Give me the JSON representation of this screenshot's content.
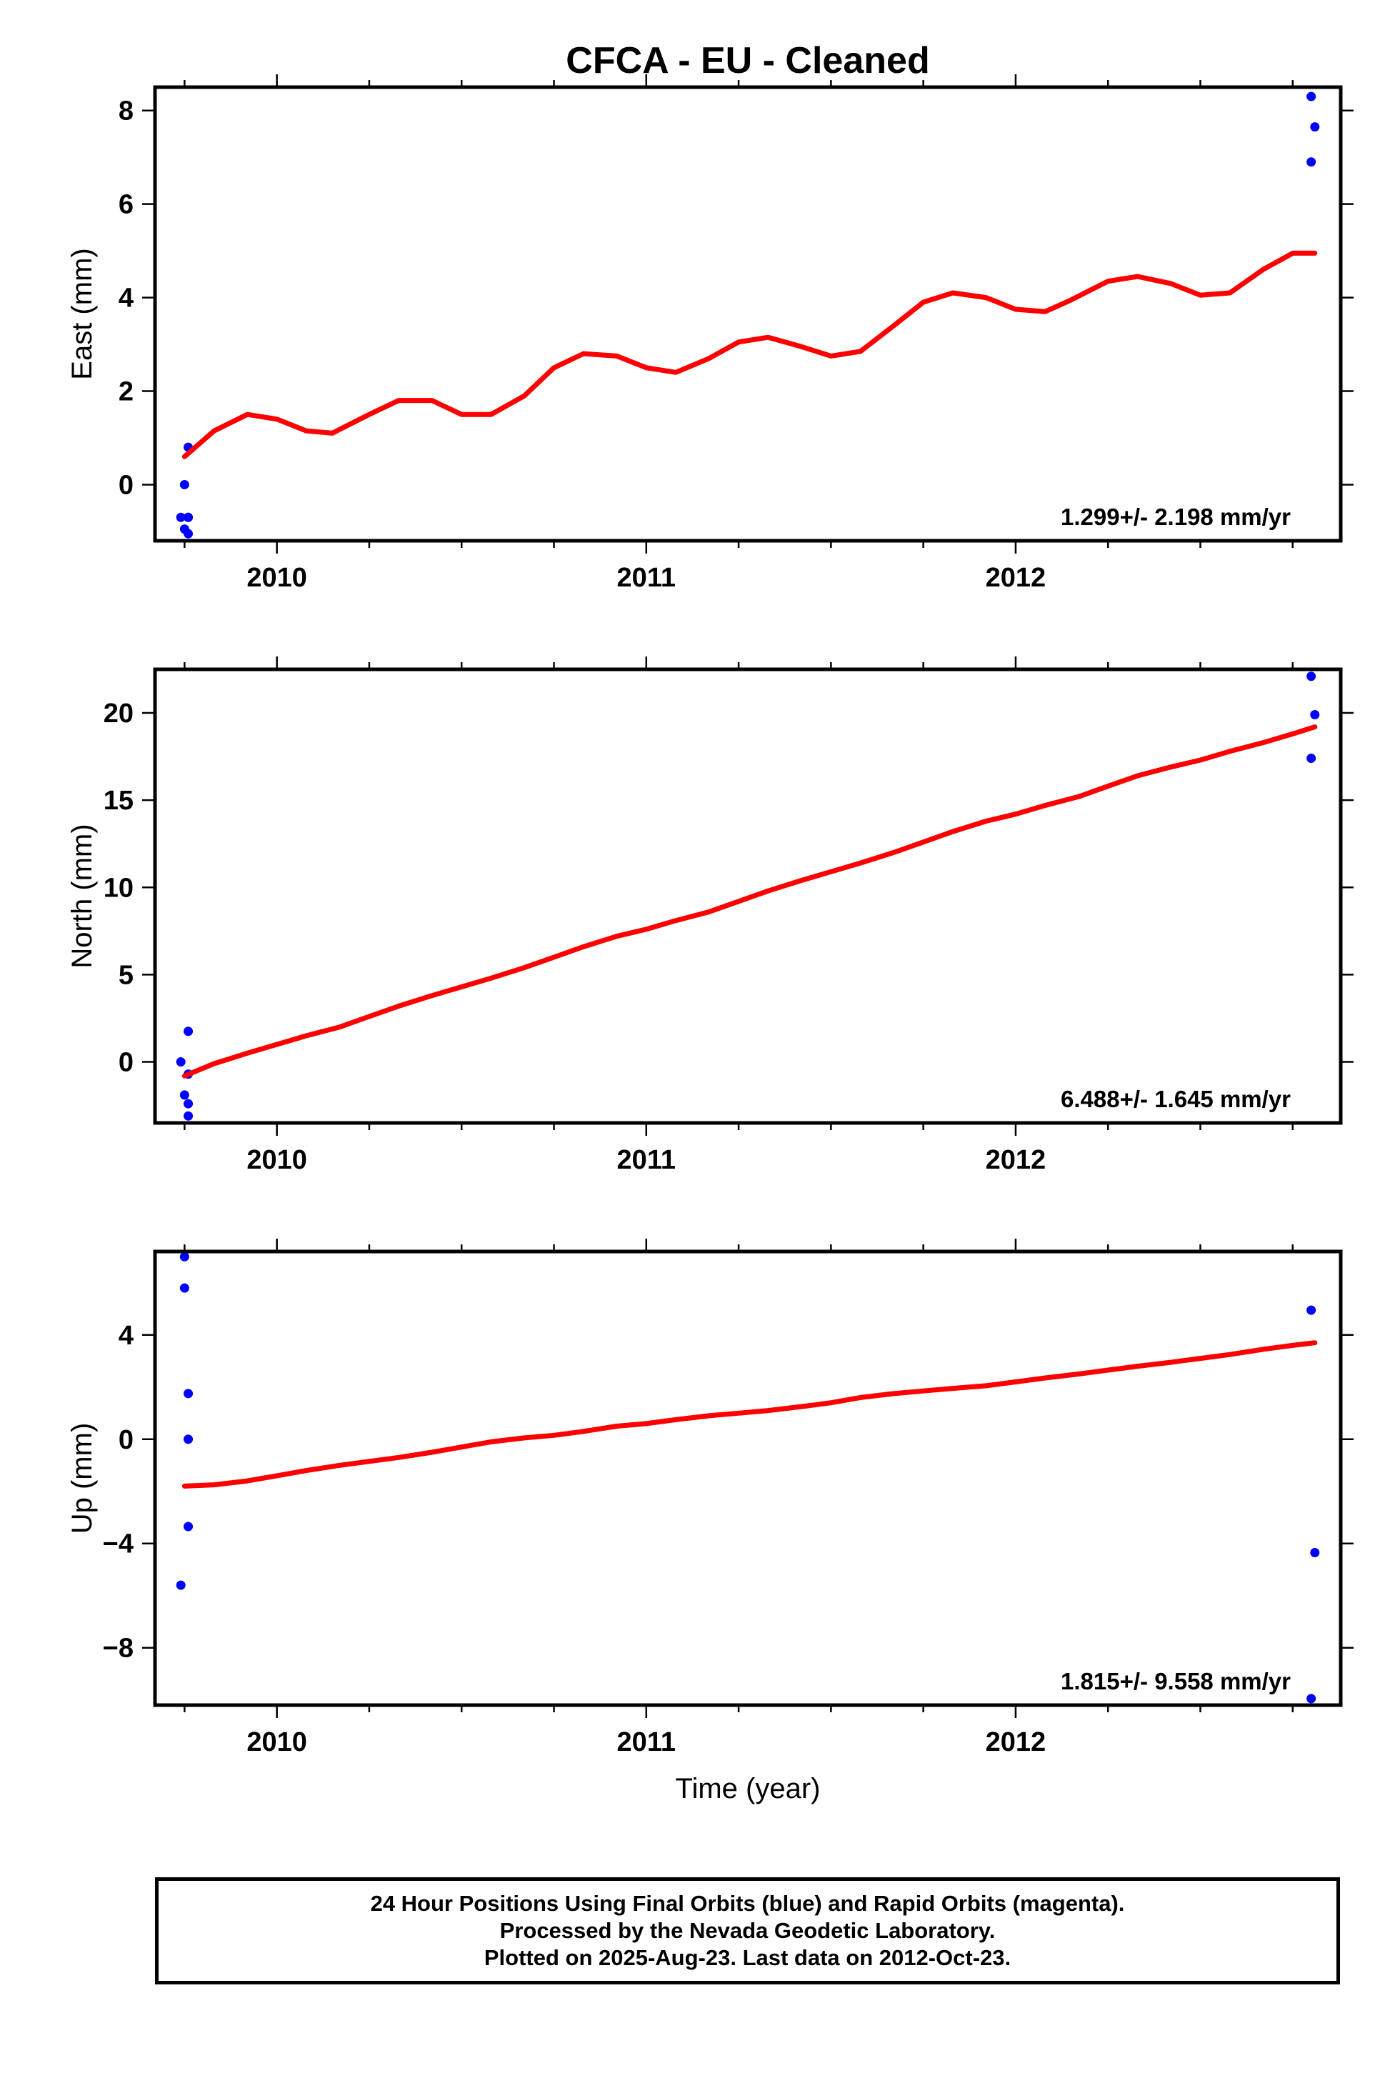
{
  "chart_data": [
    {
      "type": "scatter",
      "title": "CFCA  - EU - Cleaned",
      "ylabel": "East (mm)",
      "xlim": [
        2009.67,
        2012.88
      ],
      "ylim": [
        -1.2,
        8.5
      ],
      "yticks": [
        0,
        2,
        4,
        6,
        8
      ],
      "xticks": [
        2010,
        2011,
        2012
      ],
      "annotation": "1.299+/- 2.198 mm/yr",
      "series": [
        {
          "type": "scatter",
          "color": "#0000ff",
          "x": [
            2009.74,
            2009.75,
            2009.75,
            2009.76,
            2009.76,
            2009.76,
            2009.76,
            2012.8,
            2012.8,
            2012.81
          ],
          "y": [
            -0.7,
            0.0,
            -0.95,
            -1.05,
            -0.7,
            0.8,
            -0.7,
            8.3,
            6.9,
            7.65
          ]
        },
        {
          "type": "line",
          "color": "#ff0000",
          "x": [
            2009.75,
            2009.83,
            2009.92,
            2010.0,
            2010.08,
            2010.15,
            2010.25,
            2010.33,
            2010.42,
            2010.5,
            2010.58,
            2010.67,
            2010.75,
            2010.83,
            2010.92,
            2011.0,
            2011.08,
            2011.17,
            2011.25,
            2011.33,
            2011.42,
            2011.5,
            2011.58,
            2011.67,
            2011.75,
            2011.83,
            2011.92,
            2012.0,
            2012.08,
            2012.15,
            2012.25,
            2012.33,
            2012.42,
            2012.5,
            2012.58,
            2012.67,
            2012.75,
            2012.81
          ],
          "y": [
            0.6,
            1.15,
            1.5,
            1.4,
            1.15,
            1.1,
            1.5,
            1.8,
            1.8,
            1.5,
            1.5,
            1.9,
            2.5,
            2.8,
            2.75,
            2.5,
            2.4,
            2.7,
            3.05,
            3.15,
            2.95,
            2.75,
            2.85,
            3.4,
            3.9,
            4.1,
            4.0,
            3.75,
            3.7,
            3.95,
            4.35,
            4.45,
            4.3,
            4.05,
            4.1,
            4.6,
            4.95,
            4.95
          ]
        }
      ]
    },
    {
      "type": "scatter",
      "ylabel": "North (mm)",
      "xlim": [
        2009.67,
        2012.88
      ],
      "ylim": [
        -3.5,
        22.5
      ],
      "yticks": [
        0,
        5,
        10,
        15,
        20
      ],
      "xticks": [
        2010,
        2011,
        2012
      ],
      "annotation": "6.488+/- 1.645 mm/yr",
      "series": [
        {
          "type": "scatter",
          "color": "#0000ff",
          "x": [
            2009.74,
            2009.75,
            2009.76,
            2009.76,
            2009.76,
            2009.76,
            2012.8,
            2012.8,
            2012.81
          ],
          "y": [
            0.0,
            -1.9,
            1.75,
            -2.4,
            -3.1,
            -0.7,
            22.1,
            17.4,
            19.9
          ]
        },
        {
          "type": "line",
          "color": "#ff0000",
          "x": [
            2009.75,
            2009.83,
            2009.92,
            2010.0,
            2010.08,
            2010.17,
            2010.25,
            2010.33,
            2010.42,
            2010.5,
            2010.58,
            2010.67,
            2010.75,
            2010.83,
            2010.92,
            2011.0,
            2011.08,
            2011.17,
            2011.25,
            2011.33,
            2011.42,
            2011.5,
            2011.58,
            2011.67,
            2011.75,
            2011.83,
            2011.92,
            2012.0,
            2012.08,
            2012.17,
            2012.25,
            2012.33,
            2012.42,
            2012.5,
            2012.58,
            2012.67,
            2012.75,
            2012.81
          ],
          "y": [
            -0.8,
            -0.1,
            0.5,
            1.0,
            1.5,
            2.0,
            2.6,
            3.2,
            3.8,
            4.3,
            4.8,
            5.4,
            6.0,
            6.6,
            7.2,
            7.6,
            8.1,
            8.6,
            9.2,
            9.8,
            10.4,
            10.9,
            11.4,
            12.0,
            12.6,
            13.2,
            13.8,
            14.2,
            14.7,
            15.2,
            15.8,
            16.4,
            16.9,
            17.3,
            17.8,
            18.3,
            18.8,
            19.2
          ]
        }
      ]
    },
    {
      "type": "scatter",
      "ylabel": "Up (mm)",
      "xlabel": "Time (year)",
      "xlim": [
        2009.67,
        2012.88
      ],
      "ylim": [
        -10.2,
        7.2
      ],
      "yticks": [
        -8,
        -4,
        0,
        4
      ],
      "xticks": [
        2010,
        2011,
        2012
      ],
      "annotation": "1.815+/- 9.558 mm/yr",
      "series": [
        {
          "type": "scatter",
          "color": "#0000ff",
          "x": [
            2009.74,
            2009.75,
            2009.75,
            2009.76,
            2009.76,
            2009.76,
            2012.8,
            2012.81,
            2012.8
          ],
          "y": [
            -5.6,
            7.0,
            5.8,
            1.75,
            0.0,
            -3.35,
            4.95,
            -4.35,
            -9.95
          ]
        },
        {
          "type": "line",
          "color": "#ff0000",
          "x": [
            2009.75,
            2009.83,
            2009.92,
            2010.0,
            2010.08,
            2010.17,
            2010.25,
            2010.33,
            2010.42,
            2010.5,
            2010.58,
            2010.67,
            2010.75,
            2010.83,
            2010.92,
            2011.0,
            2011.08,
            2011.17,
            2011.25,
            2011.33,
            2011.42,
            2011.5,
            2011.58,
            2011.67,
            2011.75,
            2011.83,
            2011.92,
            2012.0,
            2012.08,
            2012.17,
            2012.25,
            2012.33,
            2012.42,
            2012.5,
            2012.58,
            2012.67,
            2012.75,
            2012.81
          ],
          "y": [
            -1.8,
            -1.75,
            -1.6,
            -1.4,
            -1.2,
            -1.0,
            -0.85,
            -0.7,
            -0.5,
            -0.3,
            -0.1,
            0.05,
            0.15,
            0.3,
            0.5,
            0.6,
            0.75,
            0.9,
            1.0,
            1.1,
            1.25,
            1.4,
            1.6,
            1.75,
            1.85,
            1.95,
            2.05,
            2.2,
            2.35,
            2.5,
            2.65,
            2.8,
            2.95,
            3.1,
            3.25,
            3.45,
            3.6,
            3.7
          ]
        }
      ]
    }
  ],
  "footer": {
    "line1": "24 Hour Positions Using Final Orbits (blue) and Rapid Orbits (magenta).",
    "line2": "Processed by the Nevada Geodetic Laboratory.",
    "line3": "Plotted on 2025-Aug-23. Last data on 2012-Oct-23."
  }
}
